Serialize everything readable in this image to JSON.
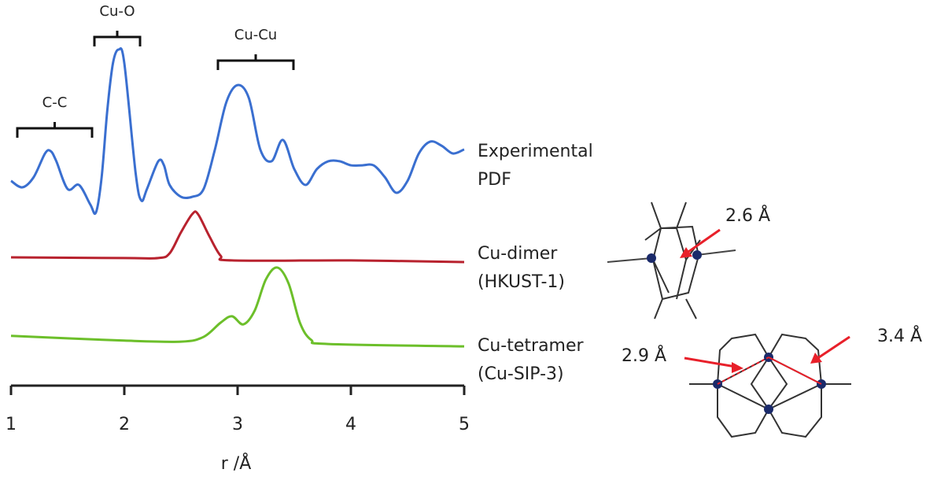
{
  "chart_data": {
    "type": "line",
    "xlabel": "r /Å",
    "xlim": [
      1,
      5
    ],
    "xticks": [
      1,
      2,
      3,
      4,
      5
    ],
    "ylim": [
      0,
      100
    ],
    "series": [
      {
        "name": "Experimental PDF",
        "color": "#3a6fd0",
        "x": [
          1.0,
          1.1,
          1.2,
          1.3,
          1.35,
          1.4,
          1.5,
          1.6,
          1.7,
          1.75,
          1.8,
          1.85,
          1.9,
          1.95,
          2.0,
          2.1,
          2.15,
          2.2,
          2.3,
          2.35,
          2.4,
          2.5,
          2.6,
          2.7,
          2.8,
          2.9,
          3.0,
          3.1,
          3.2,
          3.3,
          3.4,
          3.5,
          3.6,
          3.7,
          3.8,
          3.9,
          4.0,
          4.1,
          4.2,
          4.3,
          4.4,
          4.5,
          4.6,
          4.7,
          4.8,
          4.9,
          5.0
        ],
        "values": [
          60.5,
          58.6,
          61.6,
          68.6,
          69.3,
          66.3,
          58.1,
          59.3,
          53.5,
          51.2,
          61.6,
          81.4,
          95.3,
          99.3,
          95.3,
          62.8,
          54.7,
          58.1,
          66.3,
          65.1,
          59.3,
          55.8,
          55.8,
          58.1,
          69.8,
          83.7,
          88.8,
          84.9,
          69.8,
          66.3,
          72.6,
          64.0,
          59.3,
          64.0,
          66.3,
          66.3,
          65.1,
          65.1,
          65.1,
          61.6,
          57.0,
          60.5,
          68.6,
          72.1,
          70.9,
          68.6,
          69.8
        ]
      },
      {
        "name": "Cu-dimer (HKUST-1)",
        "color": "#b8222e",
        "x": [
          1.0,
          2.0,
          2.3,
          2.4,
          2.5,
          2.6,
          2.65,
          2.75,
          2.85,
          2.95,
          4.0,
          5.0
        ],
        "values": [
          37.9,
          37.7,
          37.7,
          39.1,
          45.3,
          50.7,
          50.7,
          44.2,
          38.4,
          37.0,
          37.0,
          36.5
        ]
      },
      {
        "name": "Cu-tetramer (Cu-SIP-3)",
        "color": "#6cbf2a",
        "x": [
          1.0,
          2.0,
          2.5,
          2.7,
          2.85,
          2.95,
          3.05,
          3.15,
          3.25,
          3.35,
          3.45,
          3.55,
          3.65,
          3.8,
          5.0
        ],
        "values": [
          14.7,
          13.3,
          13.0,
          14.4,
          18.6,
          20.5,
          18.1,
          22.1,
          31.4,
          34.9,
          30.2,
          18.6,
          13.5,
          12.3,
          11.6
        ]
      }
    ],
    "annotations": [
      "C-C",
      "Cu-O",
      "Cu-Cu"
    ],
    "distance_labels": [
      "2.6 Å",
      "2.9 Å",
      "3.4 Å"
    ]
  }
}
